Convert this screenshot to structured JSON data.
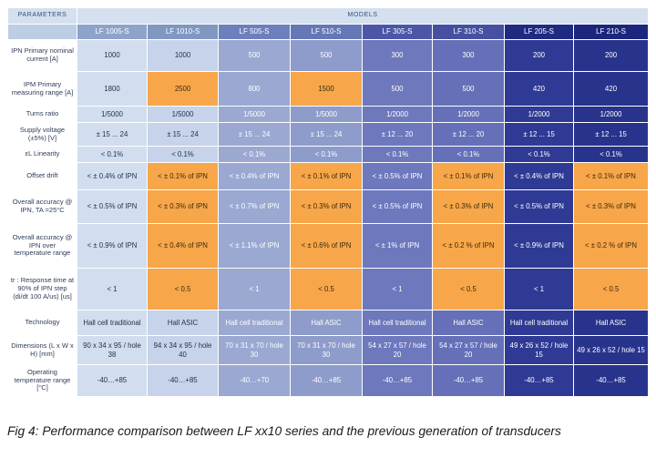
{
  "table": {
    "header_param": "Parameters",
    "header_models": "Models",
    "models": [
      "LF 1005-S",
      "LF 1010-S",
      "LF 505-S",
      "LF 510-S",
      "LF 305-S",
      "LF 310-S",
      "LF 205-S",
      "LF 210-S"
    ],
    "colors": {
      "highlight": "#f7a649",
      "columns": [
        "#d2ddef",
        "#c6d3ea",
        "#9aa8d2",
        "#8e9ccb",
        "#6d78bd",
        "#6570b8",
        "#2f3a94",
        "#28338c"
      ]
    },
    "rows": [
      {
        "param": "IPN Primary nominal current [A]",
        "cells": [
          "1000",
          "1000",
          "500",
          "500",
          "300",
          "300",
          "200",
          "200"
        ],
        "highlight": []
      },
      {
        "param": "IPM Primary measuring range [A]",
        "cells": [
          "1800",
          "2500",
          "800",
          "1500",
          "500",
          "500",
          "420",
          "420"
        ],
        "highlight": [
          1,
          3
        ]
      },
      {
        "param": "Turns ratio",
        "cells": [
          "1/5000",
          "1/5000",
          "1/5000",
          "1/5000",
          "1/2000",
          "1/2000",
          "1/2000",
          "1/2000"
        ],
        "highlight": []
      },
      {
        "param": "Supply voltage (±5%) [V]",
        "cells": [
          "± 15 ... 24",
          "± 15 ... 24",
          "± 15 ... 24",
          "± 15 ... 24",
          "± 12 ... 20",
          "± 12 ... 20",
          "± 12 ... 15",
          "± 12 ... 15"
        ],
        "highlight": []
      },
      {
        "param": "εL Linearity",
        "cells": [
          "< 0.1%",
          "< 0.1%",
          "< 0.1%",
          "< 0.1%",
          "< 0.1%",
          "< 0.1%",
          "< 0.1%",
          "< 0.1%"
        ],
        "highlight": []
      },
      {
        "param": "Offset drift",
        "cells": [
          "< ± 0.4% of IPN",
          "< ± 0.1% of IPN",
          "< ± 0.4% of IPN",
          "< ± 0.1% of IPN",
          "< ± 0.5% of IPN",
          "< ± 0.1% of IPN",
          "< ± 0.4% of IPN",
          "< ± 0.1% of IPN"
        ],
        "highlight": [
          1,
          3,
          5,
          7
        ]
      },
      {
        "param": "Overall accuracy @ IPN, TA =25°C",
        "cells": [
          "< ± 0.5% of IPN",
          "< ± 0.3% of IPN",
          "< ± 0.7% of IPN",
          "< ± 0.3% of IPN",
          "< ± 0.5% of IPN",
          "< ± 0.3% of IPN",
          "< ± 0.5% of IPN",
          "< ± 0.3% of IPN"
        ],
        "highlight": [
          1,
          3,
          5,
          7
        ]
      },
      {
        "param": "Overall accuracy @ IPN over temperature range",
        "cells": [
          "< ± 0.9% of IPN",
          "< ± 0.4% of IPN",
          "< ± 1.1% of IPN",
          "< ± 0.6% of IPN",
          "< ± 1% of IPN",
          "< ± 0.2 % of IPN",
          "< ± 0.9% of IPN",
          "< ± 0.2 % of IPN"
        ],
        "highlight": [
          1,
          3,
          5,
          7
        ]
      },
      {
        "param": "tr : Response time at 90% of IPN step (di/dt 100 A/us) [us]",
        "cells": [
          "< 1",
          "< 0.5",
          "< 1",
          "< 0.5",
          "< 1",
          "< 0.5",
          "< 1",
          "< 0.5"
        ],
        "highlight": [
          1,
          3,
          5,
          7
        ]
      },
      {
        "param": "Technology",
        "cells": [
          "Hall cell traditional",
          "Hall ASIC",
          "Hall cell traditional",
          "Hall ASIC",
          "Hall cell traditional",
          "Hall ASIC",
          "Hall cell traditional",
          "Hall ASIC"
        ],
        "highlight": []
      },
      {
        "param": "Dimensions (L x W x H) [mm]",
        "cells": [
          "90 x 34 x 95 / hole 38",
          "94 x 34 x 95 / hole 40",
          "70 x 31 x 70 / hole 30",
          "70 x 31 x 70 / hole 30",
          "54 x 27 x 57 / hole 20",
          "54 x 27 x 57 / hole 20",
          "49 x 26 x 52 / hole 15",
          "49 x 26 x 52 / hole 15"
        ],
        "highlight": []
      },
      {
        "param": "Operating temperature range [°C]",
        "cells": [
          "-40…+85",
          "-40…+85",
          "-40…+70",
          "-40…+85",
          "-40…+85",
          "-40…+85",
          "-40…+85",
          "-40…+85"
        ],
        "highlight": []
      }
    ]
  },
  "caption": "Fig 4: Performance comparison between LF xx10 series and the previous generation of transducers"
}
